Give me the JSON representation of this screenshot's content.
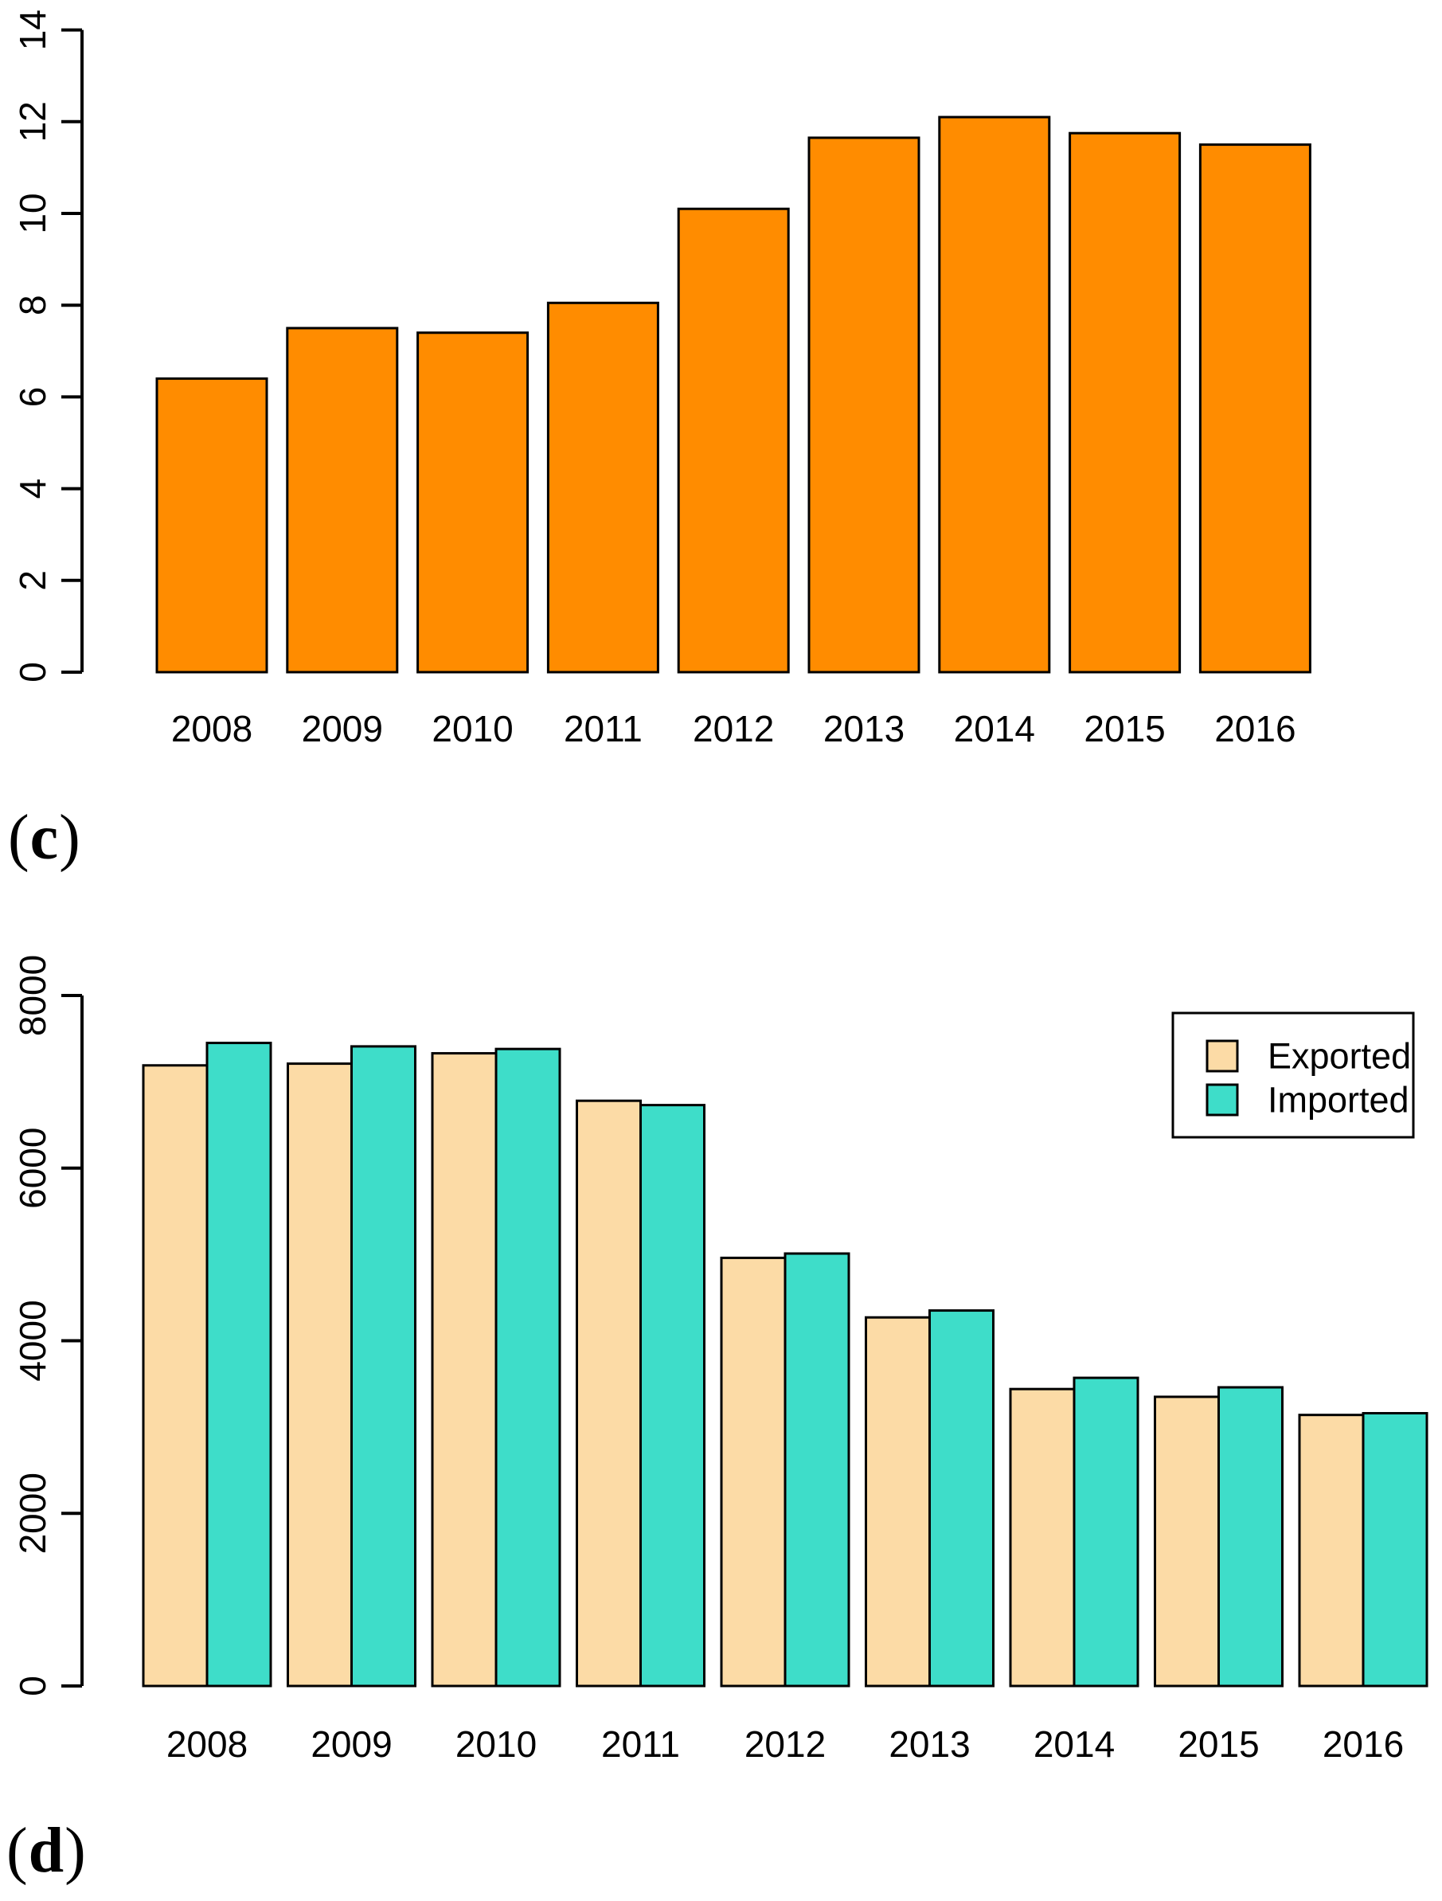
{
  "figure": {
    "background": "#ffffff",
    "panel_c": {
      "open": "(",
      "letter": "c",
      "close": ")"
    },
    "panel_d": {
      "open": "(",
      "letter": "d",
      "close": ")"
    }
  },
  "chart_data": [
    {
      "id": "c",
      "type": "bar",
      "title": "",
      "xlabel": "",
      "ylabel": "",
      "grid": false,
      "legend_position": "none",
      "categories": [
        "2008",
        "2009",
        "2010",
        "2011",
        "2012",
        "2013",
        "2014",
        "2015",
        "2016"
      ],
      "values": [
        6.4,
        7.5,
        7.4,
        8.05,
        10.1,
        11.65,
        12.1,
        11.75,
        11.5
      ],
      "bar_color": "#FF8C00",
      "bar_border_color": "#000000",
      "ylim": [
        0,
        14
      ],
      "yticks": [
        0,
        2,
        4,
        6,
        8,
        10,
        12,
        14
      ],
      "ytick_labels": [
        "0",
        "2",
        "4",
        "6",
        "8",
        "10",
        "12",
        "14"
      ]
    },
    {
      "id": "d",
      "type": "bar",
      "title": "",
      "xlabel": "",
      "ylabel": "",
      "grid": false,
      "legend_position": "top-right",
      "categories": [
        "2008",
        "2009",
        "2010",
        "2011",
        "2012",
        "2013",
        "2014",
        "2015",
        "2016"
      ],
      "series": [
        {
          "name": "Exported",
          "color": "#FCDBA6",
          "values": [
            7190,
            7210,
            7330,
            6780,
            4960,
            4270,
            3440,
            3350,
            3140
          ]
        },
        {
          "name": "Imported",
          "color": "#3EDDC9",
          "values": [
            7450,
            7410,
            7380,
            6730,
            5010,
            4350,
            3570,
            3460,
            3160
          ]
        }
      ],
      "bar_border_color": "#000000",
      "ylim": [
        0,
        8000
      ],
      "yticks": [
        0,
        2000,
        4000,
        6000,
        8000
      ],
      "ytick_labels": [
        "0",
        "2000",
        "4000",
        "6000",
        "8000"
      ]
    }
  ]
}
